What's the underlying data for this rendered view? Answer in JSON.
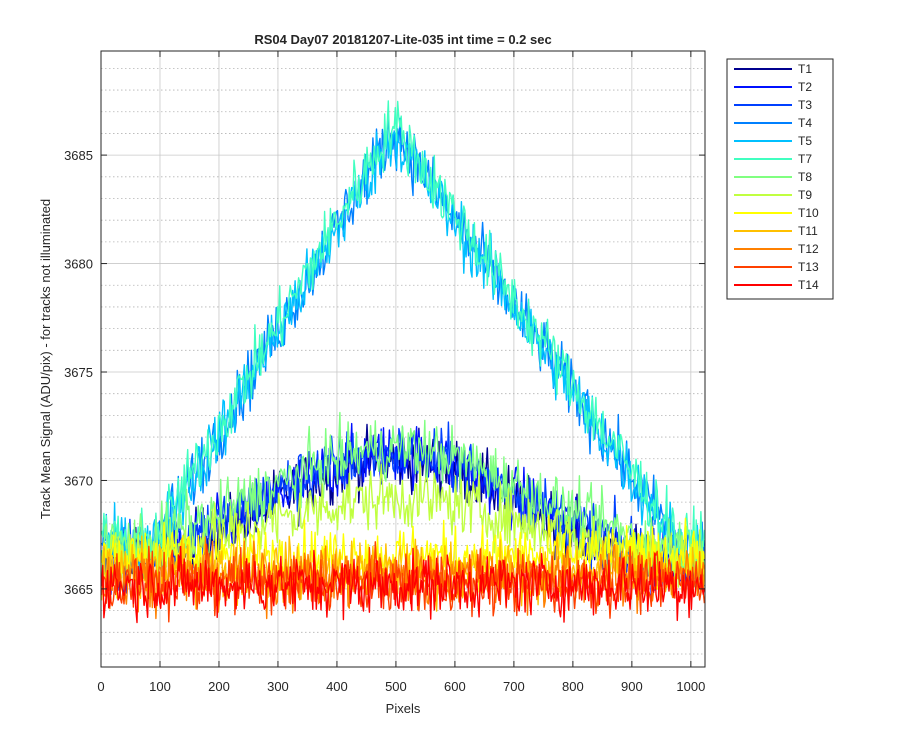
{
  "chart_data": {
    "type": "line",
    "title": "RS04 Day07 20181207-Lite-035 int time = 0.2 sec",
    "xlabel": "Pixels",
    "ylabel": "Track Mean Signal (ADU/pix) - for tracks not illuminated",
    "xlim": [
      0,
      1024
    ],
    "ylim": [
      3661.4,
      3689.8
    ],
    "xticks": [
      0,
      100,
      200,
      300,
      400,
      500,
      600,
      700,
      800,
      900,
      1000
    ],
    "yticks": [
      3665,
      3670,
      3675,
      3680,
      3685
    ],
    "grid": "major and minor",
    "legend_position": "outside-right",
    "x_range": [
      1,
      1024
    ],
    "series": [
      {
        "name": "T1",
        "color": "#00008f",
        "profile": "bump",
        "base": 3665.5,
        "peak": 3671.0,
        "noise": 1.0
      },
      {
        "name": "T2",
        "color": "#0010ff",
        "profile": "bump",
        "base": 3665.5,
        "peak": 3671.2,
        "noise": 1.0
      },
      {
        "name": "T3",
        "color": "#0040ff",
        "profile": "bump",
        "base": 3666.0,
        "peak": 3671.3,
        "noise": 1.0
      },
      {
        "name": "T4",
        "color": "#0080ff",
        "profile": "triangle",
        "base": 3667.0,
        "peak": 3686.2,
        "noise": 1.0
      },
      {
        "name": "T5",
        "color": "#00c0ff",
        "profile": "triangle",
        "base": 3667.0,
        "peak": 3686.0,
        "noise": 1.0
      },
      {
        "name": "T7",
        "color": "#40ffc0",
        "profile": "triangle",
        "base": 3667.2,
        "peak": 3686.5,
        "noise": 1.0
      },
      {
        "name": "T8",
        "color": "#80ff80",
        "profile": "bump",
        "base": 3666.5,
        "peak": 3671.5,
        "noise": 1.0
      },
      {
        "name": "T9",
        "color": "#c0ff40",
        "profile": "bump",
        "base": 3666.2,
        "peak": 3669.2,
        "noise": 1.0
      },
      {
        "name": "T10",
        "color": "#ffff00",
        "profile": "flat",
        "base": 3666.5,
        "peak": 3666.5,
        "noise": 1.0
      },
      {
        "name": "T11",
        "color": "#ffc000",
        "profile": "flat",
        "base": 3665.8,
        "peak": 3665.8,
        "noise": 1.0
      },
      {
        "name": "T12",
        "color": "#ff8000",
        "profile": "flat",
        "base": 3665.5,
        "peak": 3665.5,
        "noise": 1.0
      },
      {
        "name": "T13",
        "color": "#ff4000",
        "profile": "flat",
        "base": 3665.3,
        "peak": 3665.3,
        "noise": 1.0
      },
      {
        "name": "T14",
        "color": "#ff0000",
        "profile": "flat",
        "base": 3665.2,
        "peak": 3665.2,
        "noise": 1.0
      }
    ]
  }
}
